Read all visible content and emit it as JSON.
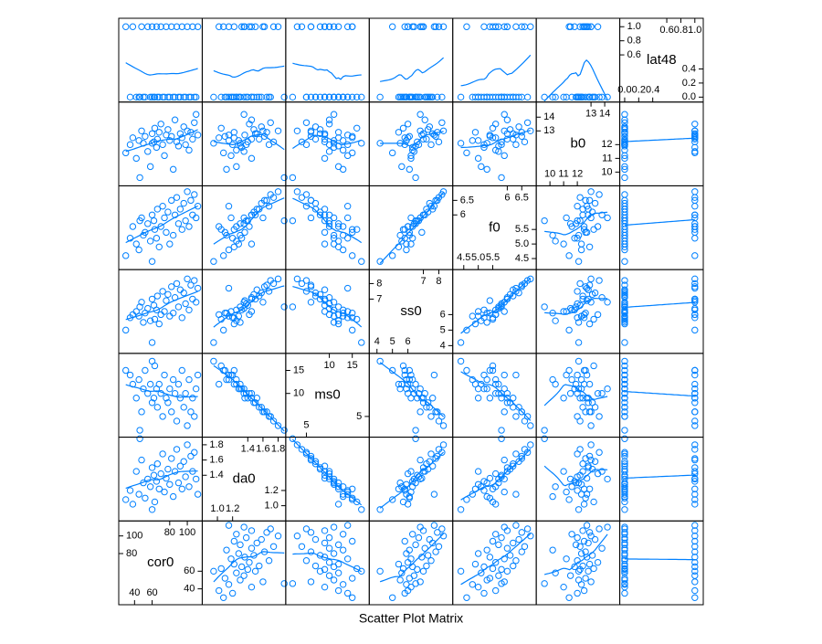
{
  "chart_data": {
    "type": "splom",
    "title": "Scatter Plot Matrix",
    "color": "#0080ff",
    "smoother": true,
    "variables": [
      {
        "name": "cor0",
        "lim": [
          22,
          117
        ],
        "ticks": [
          40,
          60,
          80,
          100
        ],
        "values": [
          35,
          38,
          42,
          45,
          48,
          50,
          52,
          55,
          58,
          60,
          62,
          63,
          65,
          66,
          68,
          70,
          72,
          74,
          76,
          78,
          80,
          82,
          84,
          86,
          88,
          90,
          92,
          94,
          96,
          98,
          100,
          102,
          104,
          106,
          108,
          110,
          60,
          30,
          46,
          112
        ]
      },
      {
        "name": "da0",
        "lim": [
          0.8,
          1.9
        ],
        "ticks": [
          {
            "value": 1.0,
            "label": "1.0"
          },
          1.2,
          1.4,
          1.6,
          1.8
        ],
        "values": [
          1.2,
          1.02,
          1.45,
          1.15,
          1.6,
          1.3,
          1.1,
          1.35,
          1.25,
          1.5,
          1.4,
          1.05,
          1.32,
          1.55,
          1.22,
          1.42,
          1.68,
          1.18,
          1.36,
          1.48,
          1.28,
          1.62,
          1.12,
          1.45,
          1.74,
          1.3,
          1.52,
          1.22,
          1.58,
          1.38,
          1.8,
          1.25,
          1.65,
          1.45,
          1.7,
          1.35,
          0.95,
          1.08,
          1.88,
          1.15
        ]
      },
      {
        "name": "ms0",
        "lim": [
          0.5,
          18.7
        ],
        "ticks": [
          5,
          10,
          15
        ],
        "values": [
          14,
          12,
          9,
          13,
          6,
          11,
          15,
          10,
          12,
          8,
          9,
          16,
          11,
          7,
          12,
          10,
          5,
          14,
          9,
          8,
          11,
          6,
          13,
          10,
          4,
          12,
          9,
          15,
          7,
          10,
          3,
          13,
          6,
          9,
          5,
          11,
          17,
          15,
          2,
          14
        ]
      },
      {
        "name": "ss0",
        "lim": [
          3.5,
          8.9
        ],
        "ticks": [
          4,
          5,
          6,
          7,
          8
        ],
        "values": [
          5.8,
          6.0,
          6.2,
          5.9,
          6.8,
          5.5,
          6.1,
          6.4,
          5.6,
          7.0,
          6.6,
          5.7,
          6.3,
          7.2,
          5.4,
          6.0,
          7.5,
          6.2,
          6.9,
          7.3,
          5.9,
          7.8,
          6.1,
          7.1,
          8.0,
          6.5,
          7.6,
          5.8,
          7.4,
          6.7,
          8.3,
          6.3,
          7.9,
          7.0,
          8.2,
          6.8,
          4.2,
          5.0,
          6.5,
          7.7
        ]
      },
      {
        "name": "f0",
        "lim": [
          4.12,
          7.0
        ],
        "ticks": [
          4.5,
          {
            "value": 5.0,
            "label": "5.0"
          },
          5.5,
          6.0,
          6.5
        ],
        "values": [
          5.2,
          5.6,
          5.0,
          4.8,
          5.9,
          5.3,
          5.4,
          5.7,
          5.1,
          6.0,
          5.8,
          5.5,
          5.2,
          6.2,
          4.9,
          5.6,
          6.3,
          5.9,
          5.4,
          6.1,
          5.0,
          6.5,
          5.3,
          6.0,
          6.6,
          5.7,
          6.2,
          5.5,
          6.4,
          5.8,
          6.8,
          5.6,
          6.5,
          6.0,
          6.7,
          5.9,
          4.4,
          4.6,
          5.8,
          6.3
        ]
      },
      {
        "name": "b0",
        "lim": [
          9.0,
          15.1
        ],
        "ticks": [
          10,
          11,
          12,
          13,
          14
        ],
        "values": [
          12.0,
          12.5,
          11.0,
          12.3,
          13.0,
          12.1,
          12.6,
          11.5,
          10.4,
          12.8,
          12.2,
          13.2,
          11.8,
          12.4,
          12.9,
          13.5,
          12.0,
          11.2,
          12.7,
          13.1,
          12.3,
          12.6,
          10.2,
          13.8,
          12.2,
          11.9,
          12.8,
          12.5,
          13.3,
          12.0,
          13.0,
          11.6,
          12.9,
          12.4,
          13.6,
          14.2,
          12.1,
          11.4,
          9.6,
          12.7
        ]
      },
      {
        "name": "lat48",
        "lim": [
          -0.07,
          1.12
        ],
        "ticks": [
          {
            "value": 0,
            "label": "0.0"
          },
          0.2,
          0.4,
          0.6,
          0.8,
          {
            "value": 1,
            "label": "1.0"
          }
        ],
        "values": [
          0,
          1,
          0,
          0,
          1,
          0,
          0,
          1,
          0,
          1,
          0,
          0,
          1,
          0,
          0,
          1,
          0,
          0,
          1,
          0,
          0,
          1,
          0,
          0,
          1,
          0,
          0,
          1,
          0,
          0,
          1,
          0,
          0,
          1,
          0,
          0,
          0,
          1,
          0,
          1
        ]
      }
    ]
  }
}
